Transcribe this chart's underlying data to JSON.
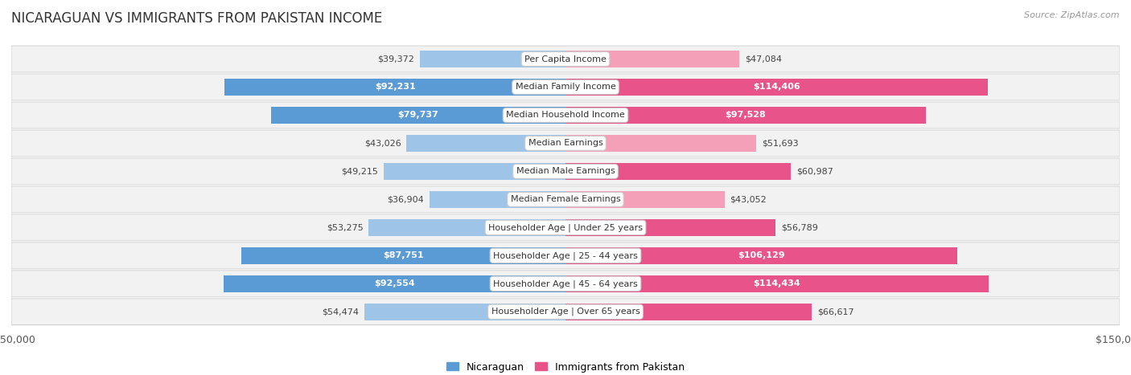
{
  "title": "NICARAGUAN VS IMMIGRANTS FROM PAKISTAN INCOME",
  "source": "Source: ZipAtlas.com",
  "categories": [
    "Per Capita Income",
    "Median Family Income",
    "Median Household Income",
    "Median Earnings",
    "Median Male Earnings",
    "Median Female Earnings",
    "Householder Age | Under 25 years",
    "Householder Age | 25 - 44 years",
    "Householder Age | 45 - 64 years",
    "Householder Age | Over 65 years"
  ],
  "nicaraguan_values": [
    39372,
    92231,
    79737,
    43026,
    49215,
    36904,
    53275,
    87751,
    92554,
    54474
  ],
  "pakistan_values": [
    47084,
    114406,
    97528,
    51693,
    60987,
    43052,
    56789,
    106129,
    114434,
    66617
  ],
  "nicaraguan_labels": [
    "$39,372",
    "$92,231",
    "$79,737",
    "$43,026",
    "$49,215",
    "$36,904",
    "$53,275",
    "$87,751",
    "$92,554",
    "$54,474"
  ],
  "pakistan_labels": [
    "$47,084",
    "$114,406",
    "$97,528",
    "$51,693",
    "$60,987",
    "$43,052",
    "$56,789",
    "$106,129",
    "$114,434",
    "$66,617"
  ],
  "max_value": 150000,
  "bar_color_nicaragua": "#9ec4e8",
  "bar_color_pakistan": "#f4a0b8",
  "bar_color_nicaragua_strong": "#5b9bd5",
  "bar_color_pakistan_strong": "#e8538a",
  "background_row_color": "#f2f2f2",
  "background_color": "#ffffff",
  "legend_nicaragua": "Nicaraguan",
  "legend_pakistan": "Immigrants from Pakistan",
  "label_inside_nicaragua": [
    false,
    true,
    true,
    false,
    false,
    false,
    false,
    true,
    true,
    false
  ],
  "label_inside_pakistan": [
    false,
    true,
    true,
    false,
    false,
    false,
    false,
    true,
    true,
    false
  ]
}
